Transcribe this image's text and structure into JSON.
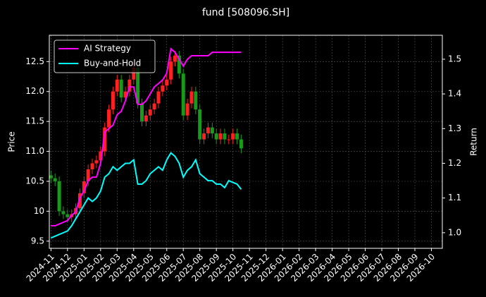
{
  "chart_data": {
    "type": "candlestick",
    "title": "fund [508096.SH]",
    "ylabel": "Price",
    "y2label": "Return",
    "x": [
      0,
      0.25,
      0.5,
      0.75,
      1,
      1.25,
      1.5,
      1.75,
      2,
      2.25,
      2.5,
      2.75,
      3,
      3.25,
      3.5,
      3.75,
      4,
      4.25,
      4.5,
      4.75,
      5,
      5.25,
      5.5,
      5.75,
      6,
      6.25,
      6.5,
      6.75,
      7,
      7.25,
      7.5,
      7.75,
      8,
      8.25,
      8.5,
      8.75,
      9,
      9.25,
      9.5,
      9.75,
      10,
      10.25,
      10.5,
      10.75,
      11,
      11.25,
      11.5
    ],
    "open": [
      10.6,
      10.55,
      10.5,
      10.0,
      9.95,
      9.9,
      9.95,
      10.05,
      10.3,
      10.5,
      10.7,
      10.8,
      10.85,
      11.0,
      11.4,
      11.7,
      12.0,
      12.2,
      11.9,
      12.0,
      12.2,
      12.4,
      11.8,
      11.5,
      11.6,
      11.7,
      11.8,
      12.0,
      12.1,
      12.2,
      12.5,
      12.6,
      12.3,
      11.6,
      11.8,
      12.0,
      11.7,
      11.2,
      11.3,
      11.4,
      11.3,
      11.2,
      11.3,
      11.2,
      11.2,
      11.3,
      11.2
    ],
    "high": [
      10.68,
      10.63,
      10.58,
      10.08,
      10.03,
      10.03,
      10.13,
      10.38,
      10.58,
      10.78,
      10.88,
      10.93,
      11.08,
      11.48,
      11.78,
      12.08,
      12.28,
      12.28,
      12.08,
      12.28,
      12.48,
      12.48,
      11.88,
      11.68,
      11.78,
      11.88,
      12.08,
      12.18,
      12.28,
      12.58,
      12.68,
      12.68,
      12.38,
      11.88,
      12.08,
      12.08,
      11.78,
      11.38,
      11.48,
      11.48,
      11.38,
      11.38,
      11.38,
      11.28,
      11.38,
      11.38,
      11.28
    ],
    "low": [
      10.47,
      10.42,
      9.92,
      9.87,
      9.82,
      9.82,
      9.87,
      9.97,
      10.22,
      10.42,
      10.62,
      10.72,
      10.77,
      10.92,
      11.32,
      11.62,
      11.92,
      11.82,
      11.82,
      11.92,
      12.12,
      11.72,
      11.42,
      11.42,
      11.52,
      11.62,
      11.72,
      11.92,
      12.02,
      12.12,
      12.42,
      12.22,
      11.52,
      11.52,
      11.72,
      11.62,
      11.12,
      11.12,
      11.22,
      11.22,
      11.12,
      11.12,
      11.12,
      11.12,
      11.12,
      11.12,
      10.97
    ],
    "close": [
      10.55,
      10.5,
      10.0,
      9.95,
      9.9,
      9.95,
      10.05,
      10.3,
      10.5,
      10.7,
      10.8,
      10.85,
      11.0,
      11.4,
      11.7,
      12.0,
      12.2,
      11.9,
      12.0,
      12.2,
      12.4,
      11.8,
      11.5,
      11.6,
      11.7,
      11.8,
      12.0,
      12.1,
      12.2,
      12.5,
      12.6,
      12.3,
      11.6,
      11.8,
      12.0,
      11.7,
      11.2,
      11.3,
      11.4,
      11.3,
      11.2,
      11.3,
      11.2,
      11.2,
      11.3,
      11.2,
      11.05
    ],
    "up_color": "#ff2020",
    "down_color": "#1a9a1a",
    "series": [
      {
        "name": "AI Strategy",
        "color": "#ff00ff",
        "axis": "y2",
        "values": [
          1.02,
          1.02,
          1.025,
          1.03,
          1.035,
          1.05,
          1.06,
          1.1,
          1.12,
          1.15,
          1.16,
          1.16,
          1.2,
          1.29,
          1.3,
          1.31,
          1.34,
          1.35,
          1.38,
          1.42,
          1.42,
          1.37,
          1.37,
          1.38,
          1.4,
          1.42,
          1.43,
          1.44,
          1.46,
          1.53,
          1.52,
          1.5,
          1.48,
          1.5,
          1.51,
          1.51,
          1.51,
          1.51,
          1.51,
          1.52,
          1.52,
          1.52,
          1.52,
          1.52,
          1.52,
          1.52,
          1.52
        ]
      },
      {
        "name": "Buy-and-Hold",
        "color": "#00ffff",
        "axis": "y2",
        "values": [
          0.985,
          0.99,
          0.995,
          1.0,
          1.005,
          1.02,
          1.04,
          1.06,
          1.08,
          1.1,
          1.09,
          1.1,
          1.12,
          1.16,
          1.17,
          1.19,
          1.18,
          1.19,
          1.2,
          1.2,
          1.21,
          1.14,
          1.14,
          1.15,
          1.17,
          1.18,
          1.19,
          1.18,
          1.21,
          1.23,
          1.22,
          1.2,
          1.16,
          1.18,
          1.19,
          1.21,
          1.17,
          1.16,
          1.15,
          1.15,
          1.14,
          1.14,
          1.13,
          1.15,
          1.145,
          1.14,
          1.125
        ]
      }
    ],
    "xlim": [
      -0.1,
      23.66
    ],
    "xticks": [
      {
        "value": 0,
        "label": "2024-11"
      },
      {
        "value": 1,
        "label": "2024-12"
      },
      {
        "value": 2,
        "label": "2025-01"
      },
      {
        "value": 3,
        "label": "2025-02"
      },
      {
        "value": 4,
        "label": "2025-03"
      },
      {
        "value": 5,
        "label": "2025-04"
      },
      {
        "value": 6,
        "label": "2025-05"
      },
      {
        "value": 7,
        "label": "2025-06"
      },
      {
        "value": 8,
        "label": "2025-07"
      },
      {
        "value": 9,
        "label": "2025-08"
      },
      {
        "value": 10,
        "label": "2025-09"
      },
      {
        "value": 11,
        "label": "2025-10"
      },
      {
        "value": 12,
        "label": "2025-11"
      },
      {
        "value": 13,
        "label": "2025-12"
      },
      {
        "value": 14,
        "label": "2026-01"
      },
      {
        "value": 15,
        "label": "2026-02"
      },
      {
        "value": 16,
        "label": "2026-03"
      },
      {
        "value": 17,
        "label": "2026-04"
      },
      {
        "value": 18,
        "label": "2026-05"
      },
      {
        "value": 19,
        "label": "2026-06"
      },
      {
        "value": 20,
        "label": "2026-07"
      },
      {
        "value": 21,
        "label": "2026-08"
      },
      {
        "value": 22,
        "label": "2026-09"
      },
      {
        "value": 23,
        "label": "2026-10"
      }
    ],
    "ylim": [
      9.38,
      12.94
    ],
    "yticks": [
      9.5,
      10.0,
      {
        "value": 10.5,
        "label": "10.5"
      },
      {
        "value": 11,
        "label": "11.0"
      },
      11.5,
      {
        "value": 12,
        "label": "12.0"
      },
      12.5
    ],
    "y2lim": [
      0.955,
      1.569
    ],
    "y2ticks": [
      {
        "value": 1,
        "label": "1.0"
      },
      1.1,
      1.2,
      1.3,
      1.4,
      1.5
    ],
    "grid": true,
    "legend": "upper left"
  }
}
